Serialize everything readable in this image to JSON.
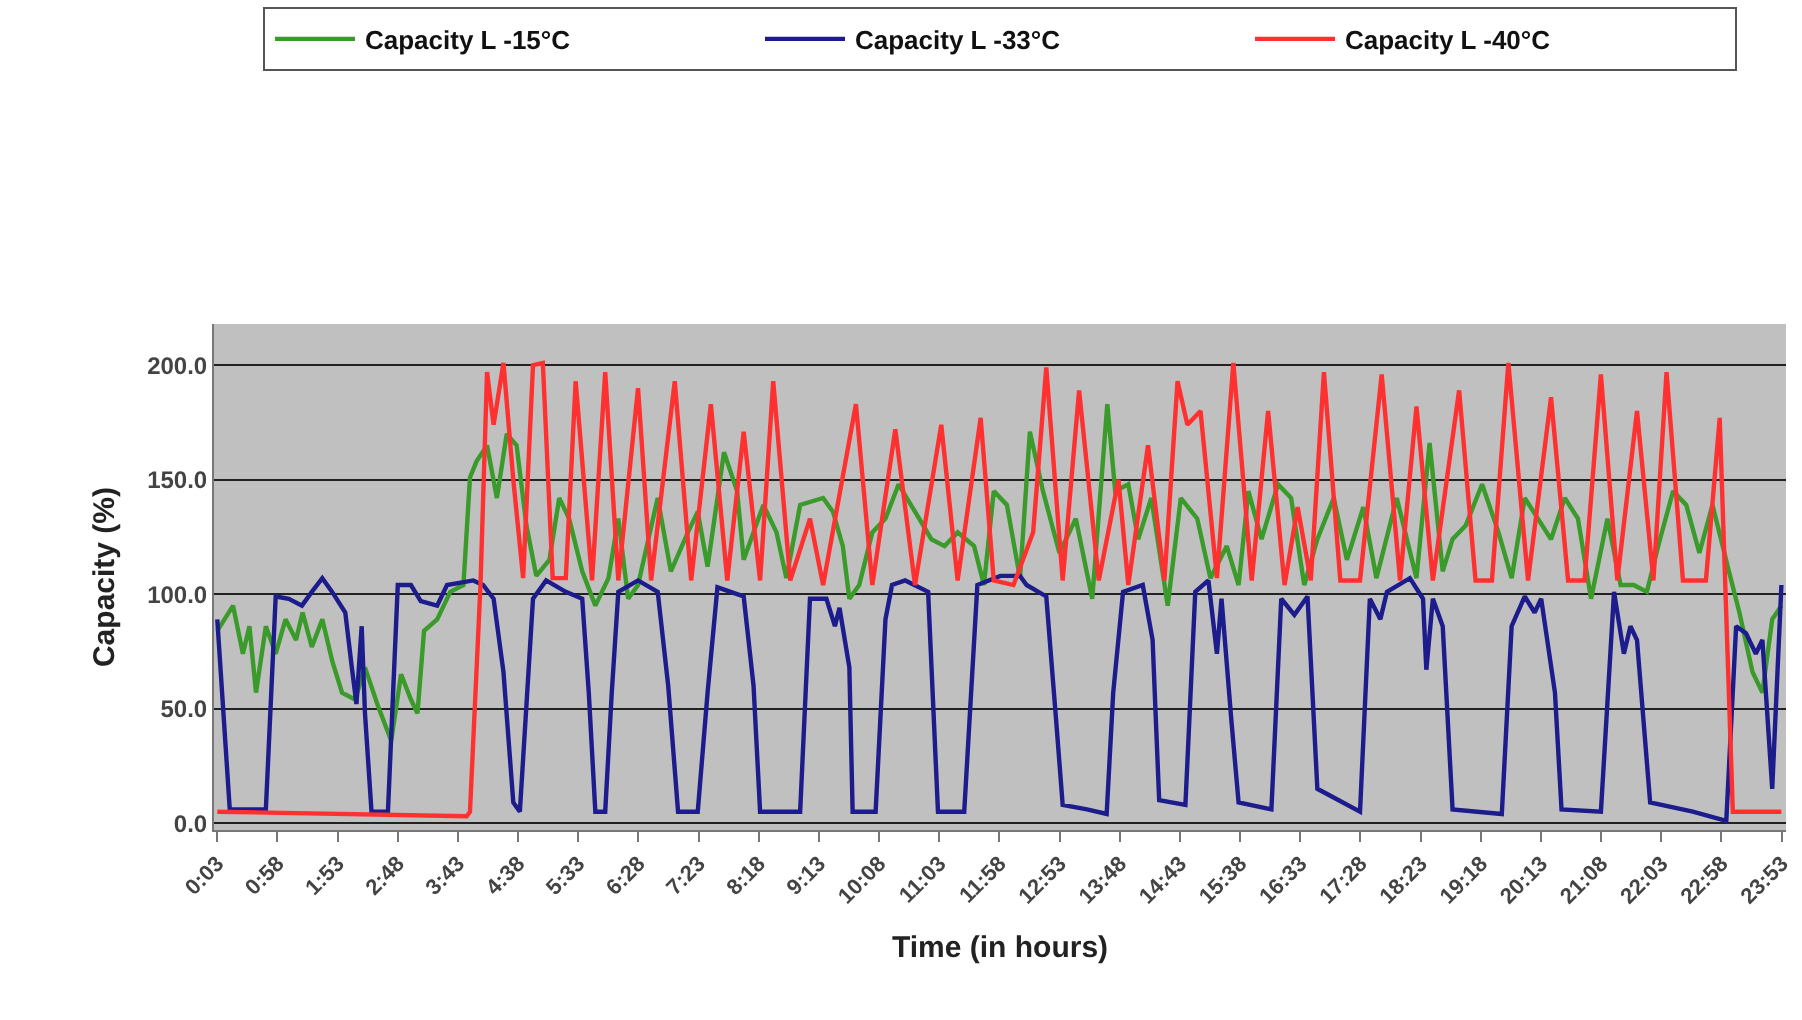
{
  "chart_data": {
    "type": "line",
    "xlabel": "Time (in hours)",
    "ylabel": "Capacity (%)",
    "xlim": [
      0.0,
      23.95
    ],
    "ylim": [
      -3,
      218
    ],
    "xticks": [
      {
        "value": 0.05,
        "label": "0:03"
      },
      {
        "value": 0.967,
        "label": "0:58"
      },
      {
        "value": 1.883,
        "label": "1:53"
      },
      {
        "value": 2.8,
        "label": "2:48"
      },
      {
        "value": 3.717,
        "label": "3:43"
      },
      {
        "value": 4.633,
        "label": "4:38"
      },
      {
        "value": 5.55,
        "label": "5:33"
      },
      {
        "value": 6.467,
        "label": "6:28"
      },
      {
        "value": 7.383,
        "label": "7:23"
      },
      {
        "value": 8.3,
        "label": "8:18"
      },
      {
        "value": 9.217,
        "label": "9:13"
      },
      {
        "value": 10.133,
        "label": "10:08"
      },
      {
        "value": 11.05,
        "label": "11:03"
      },
      {
        "value": 11.967,
        "label": "11:58"
      },
      {
        "value": 12.883,
        "label": "12:53"
      },
      {
        "value": 13.8,
        "label": "13:48"
      },
      {
        "value": 14.717,
        "label": "14:43"
      },
      {
        "value": 15.633,
        "label": "15:38"
      },
      {
        "value": 16.55,
        "label": "16:33"
      },
      {
        "value": 17.467,
        "label": "17:28"
      },
      {
        "value": 18.383,
        "label": "18:23"
      },
      {
        "value": 19.3,
        "label": "19:18"
      },
      {
        "value": 20.217,
        "label": "20:13"
      },
      {
        "value": 21.133,
        "label": "21:08"
      },
      {
        "value": 22.05,
        "label": "22:03"
      },
      {
        "value": 22.967,
        "label": "22:58"
      },
      {
        "value": 23.883,
        "label": "23:53"
      }
    ],
    "yticks": [
      {
        "value": 0,
        "label": "0.0"
      },
      {
        "value": 50,
        "label": "50.0"
      },
      {
        "value": 100,
        "label": "100.0"
      },
      {
        "value": 150,
        "label": "150.0"
      },
      {
        "value": 200,
        "label": "200.0"
      }
    ],
    "grid": "y",
    "legend": "top",
    "marker": "none",
    "line_style": "solid",
    "series": [
      {
        "name": "Capacity L -15°C",
        "color": "#3a9a2a",
        "x": [
          0.05,
          0.29,
          0.44,
          0.54,
          0.64,
          0.79,
          0.94,
          1.09,
          1.25,
          1.35,
          1.49,
          1.65,
          1.8,
          1.95,
          2.15,
          2.3,
          2.5,
          2.7,
          2.85,
          3.0,
          3.1,
          3.2,
          3.4,
          3.6,
          3.8,
          3.9,
          4.0,
          4.16,
          4.31,
          4.46,
          4.61,
          4.76,
          4.91,
          5.11,
          5.26,
          5.41,
          5.61,
          5.81,
          6.01,
          6.16,
          6.31,
          6.46,
          6.76,
          6.96,
          7.22,
          7.37,
          7.52,
          7.77,
          7.97,
          8.07,
          8.37,
          8.57,
          8.72,
          8.93,
          9.28,
          9.43,
          9.58,
          9.68,
          9.83,
          10.03,
          10.23,
          10.43,
          10.68,
          10.93,
          11.13,
          11.33,
          11.58,
          11.73,
          11.88,
          12.08,
          12.28,
          12.43,
          12.63,
          12.88,
          13.13,
          13.38,
          13.61,
          13.73,
          13.93,
          14.08,
          14.28,
          14.53,
          14.73,
          14.98,
          15.18,
          15.43,
          15.61,
          15.76,
          15.96,
          16.21,
          16.41,
          16.61,
          16.81,
          17.06,
          17.26,
          17.51,
          17.71,
          18.02,
          18.32,
          18.52,
          18.72,
          18.87,
          19.07,
          19.32,
          19.57,
          19.77,
          19.97,
          20.17,
          20.37,
          20.58,
          20.78,
          20.98,
          21.23,
          21.43,
          21.63,
          21.83,
          22.03,
          22.23,
          22.43,
          22.63,
          22.83,
          23.08,
          23.24,
          23.44,
          23.59,
          23.74,
          23.88
        ],
        "values": [
          84,
          95,
          74,
          86,
          57,
          86,
          74,
          89,
          80,
          92,
          77,
          89,
          71,
          57,
          54,
          68,
          51,
          36,
          65,
          54,
          48,
          84,
          89,
          101,
          104,
          151,
          158,
          165,
          142,
          170,
          165,
          130,
          108,
          115,
          142,
          133,
          110,
          95,
          107,
          133,
          98,
          104,
          142,
          110,
          127,
          136,
          112,
          162,
          145,
          115,
          139,
          127,
          107,
          139,
          142,
          136,
          121,
          98,
          104,
          127,
          133,
          148,
          136,
          124,
          121,
          127,
          121,
          104,
          145,
          139,
          107,
          171,
          145,
          118,
          133,
          98,
          183,
          145,
          148,
          124,
          142,
          95,
          142,
          133,
          107,
          121,
          104,
          145,
          124,
          148,
          142,
          104,
          124,
          142,
          115,
          138,
          107,
          142,
          107,
          166,
          110,
          124,
          130,
          148,
          127,
          107,
          142,
          133,
          124,
          142,
          133,
          98,
          133,
          104,
          104,
          101,
          124,
          145,
          139,
          118,
          139,
          110,
          92,
          66,
          57,
          89,
          95
        ]
      },
      {
        "name": "Capacity L -33°C",
        "color": "#1c1c8c",
        "x": [
          0.05,
          0.24,
          0.79,
          0.94,
          1.14,
          1.34,
          1.49,
          1.65,
          1.8,
          2.0,
          2.1,
          2.17,
          2.25,
          2.3,
          2.4,
          2.65,
          2.8,
          3.0,
          3.15,
          3.4,
          3.55,
          3.95,
          4.1,
          4.26,
          4.41,
          4.56,
          4.66,
          4.86,
          5.06,
          5.36,
          5.61,
          5.71,
          5.81,
          5.96,
          6.06,
          6.16,
          6.46,
          6.76,
          6.92,
          7.07,
          7.37,
          7.52,
          7.67,
          8.07,
          8.22,
          8.32,
          8.93,
          9.08,
          9.33,
          9.46,
          9.53,
          9.68,
          9.73,
          10.08,
          10.23,
          10.33,
          10.53,
          10.88,
          11.03,
          11.43,
          11.63,
          11.98,
          12.28,
          12.38,
          12.68,
          12.83,
          12.93,
          13.3,
          13.6,
          13.7,
          13.85,
          14.15,
          14.3,
          14.4,
          14.8,
          14.95,
          15.15,
          15.28,
          15.35,
          15.5,
          15.61,
          16.11,
          16.26,
          16.46,
          16.66,
          16.81,
          17.46,
          17.61,
          17.77,
          17.87,
          18.22,
          18.42,
          18.47,
          18.57,
          18.72,
          18.87,
          19.62,
          19.77,
          19.97,
          20.12,
          20.22,
          20.43,
          20.53,
          21.13,
          21.33,
          21.48,
          21.58,
          21.68,
          21.88,
          22.53,
          23.04,
          23.19,
          23.34,
          23.49,
          23.59,
          23.74,
          23.88
        ],
        "values": [
          89,
          6,
          6,
          99,
          98,
          95,
          101,
          107,
          101,
          92,
          68,
          52,
          86,
          48,
          5,
          5,
          104,
          104,
          97,
          95,
          104,
          106,
          104,
          98,
          66,
          9,
          5,
          98,
          106,
          101,
          98,
          57,
          5,
          5,
          57,
          101,
          106,
          101,
          60,
          5,
          5,
          57,
          103,
          99,
          60,
          5,
          5,
          98,
          98,
          86,
          94,
          68,
          5,
          5,
          89,
          104,
          106,
          101,
          5,
          5,
          104,
          108,
          108,
          104,
          99,
          45,
          8,
          6,
          4,
          57,
          101,
          104,
          80,
          10,
          8,
          101,
          106,
          74,
          98,
          45,
          9,
          6,
          98,
          91,
          99,
          15,
          5,
          98,
          89,
          101,
          107,
          98,
          67,
          98,
          86,
          6,
          4,
          86,
          99,
          92,
          98,
          57,
          6,
          5,
          101,
          74,
          86,
          80,
          9,
          5,
          1,
          86,
          83,
          74,
          80,
          15,
          104
        ]
      },
      {
        "name": "Capacity L -40°C",
        "color": "#ff3030",
        "x": [
          0.05,
          3.85,
          3.9,
          4.06,
          4.16,
          4.26,
          4.41,
          4.56,
          4.71,
          4.86,
          5.01,
          5.16,
          5.36,
          5.51,
          5.76,
          5.96,
          6.16,
          6.46,
          6.66,
          7.02,
          7.27,
          7.57,
          7.82,
          8.07,
          8.32,
          8.52,
          8.78,
          9.08,
          9.28,
          9.78,
          10.03,
          10.38,
          10.68,
          11.08,
          11.33,
          11.68,
          11.88,
          12.18,
          12.48,
          12.68,
          12.93,
          13.18,
          13.48,
          13.78,
          13.93,
          14.23,
          14.48,
          14.68,
          14.83,
          15.03,
          15.28,
          15.53,
          15.81,
          16.06,
          16.31,
          16.51,
          16.71,
          16.91,
          17.16,
          17.46,
          17.79,
          18.07,
          18.32,
          18.57,
          18.97,
          19.22,
          19.47,
          19.72,
          20.02,
          20.37,
          20.63,
          20.88,
          21.13,
          21.38,
          21.68,
          21.93,
          22.13,
          22.38,
          22.73,
          22.94,
          23.14,
          23.88
        ],
        "values": [
          5,
          3,
          5,
          104,
          197,
          174,
          201,
          150,
          107,
          200,
          201,
          107,
          107,
          193,
          106,
          197,
          106,
          190,
          106,
          193,
          106,
          183,
          106,
          171,
          106,
          193,
          106,
          133,
          104,
          183,
          104,
          172,
          104,
          174,
          106,
          177,
          106,
          104,
          127,
          199,
          106,
          189,
          106,
          150,
          104,
          165,
          106,
          193,
          174,
          180,
          107,
          201,
          106,
          180,
          104,
          138,
          106,
          197,
          106,
          106,
          196,
          106,
          182,
          106,
          189,
          106,
          106,
          201,
          106,
          186,
          106,
          106,
          196,
          106,
          180,
          106,
          197,
          106,
          106,
          177,
          5,
          5
        ]
      }
    ]
  }
}
